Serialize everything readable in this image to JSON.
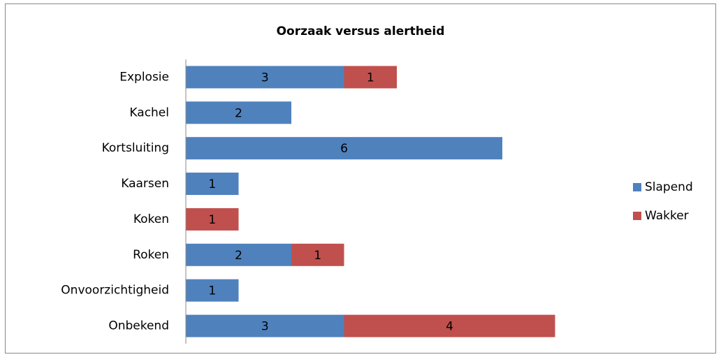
{
  "chart_data": {
    "type": "bar",
    "orientation": "horizontal",
    "stacked": true,
    "title": "Oorzaak versus alertheid",
    "categories": [
      "Explosie",
      "Kachel",
      "Kortsluiting",
      "Kaarsen",
      "Koken",
      "Roken",
      "Onvoorzichtigheid",
      "Onbekend"
    ],
    "series": [
      {
        "name": "Slapend",
        "color": "#4f81bd",
        "values": [
          3,
          2,
          6,
          1,
          null,
          2,
          1,
          3
        ]
      },
      {
        "name": "Wakker",
        "color": "#c0504d",
        "values": [
          1,
          null,
          null,
          null,
          1,
          1,
          null,
          4
        ]
      }
    ],
    "xlim": [
      0,
      8
    ],
    "legend": "right"
  }
}
